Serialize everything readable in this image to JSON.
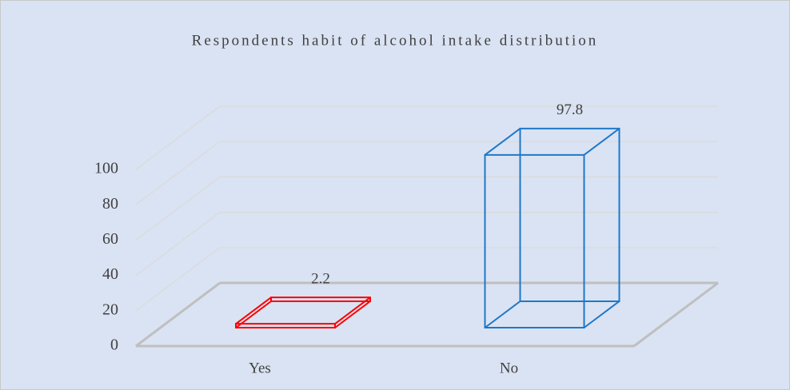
{
  "chart_data": {
    "type": "bar3d",
    "title": "Respondents habit of alcohol intake distribution",
    "categories": [
      "Yes",
      "No"
    ],
    "values": [
      2.2,
      97.8
    ],
    "colors": [
      "#ff0000",
      "#1f78c8"
    ],
    "ylim": [
      0,
      100
    ],
    "yticks": [
      0,
      20,
      40,
      60,
      80,
      100
    ],
    "grid": true
  }
}
